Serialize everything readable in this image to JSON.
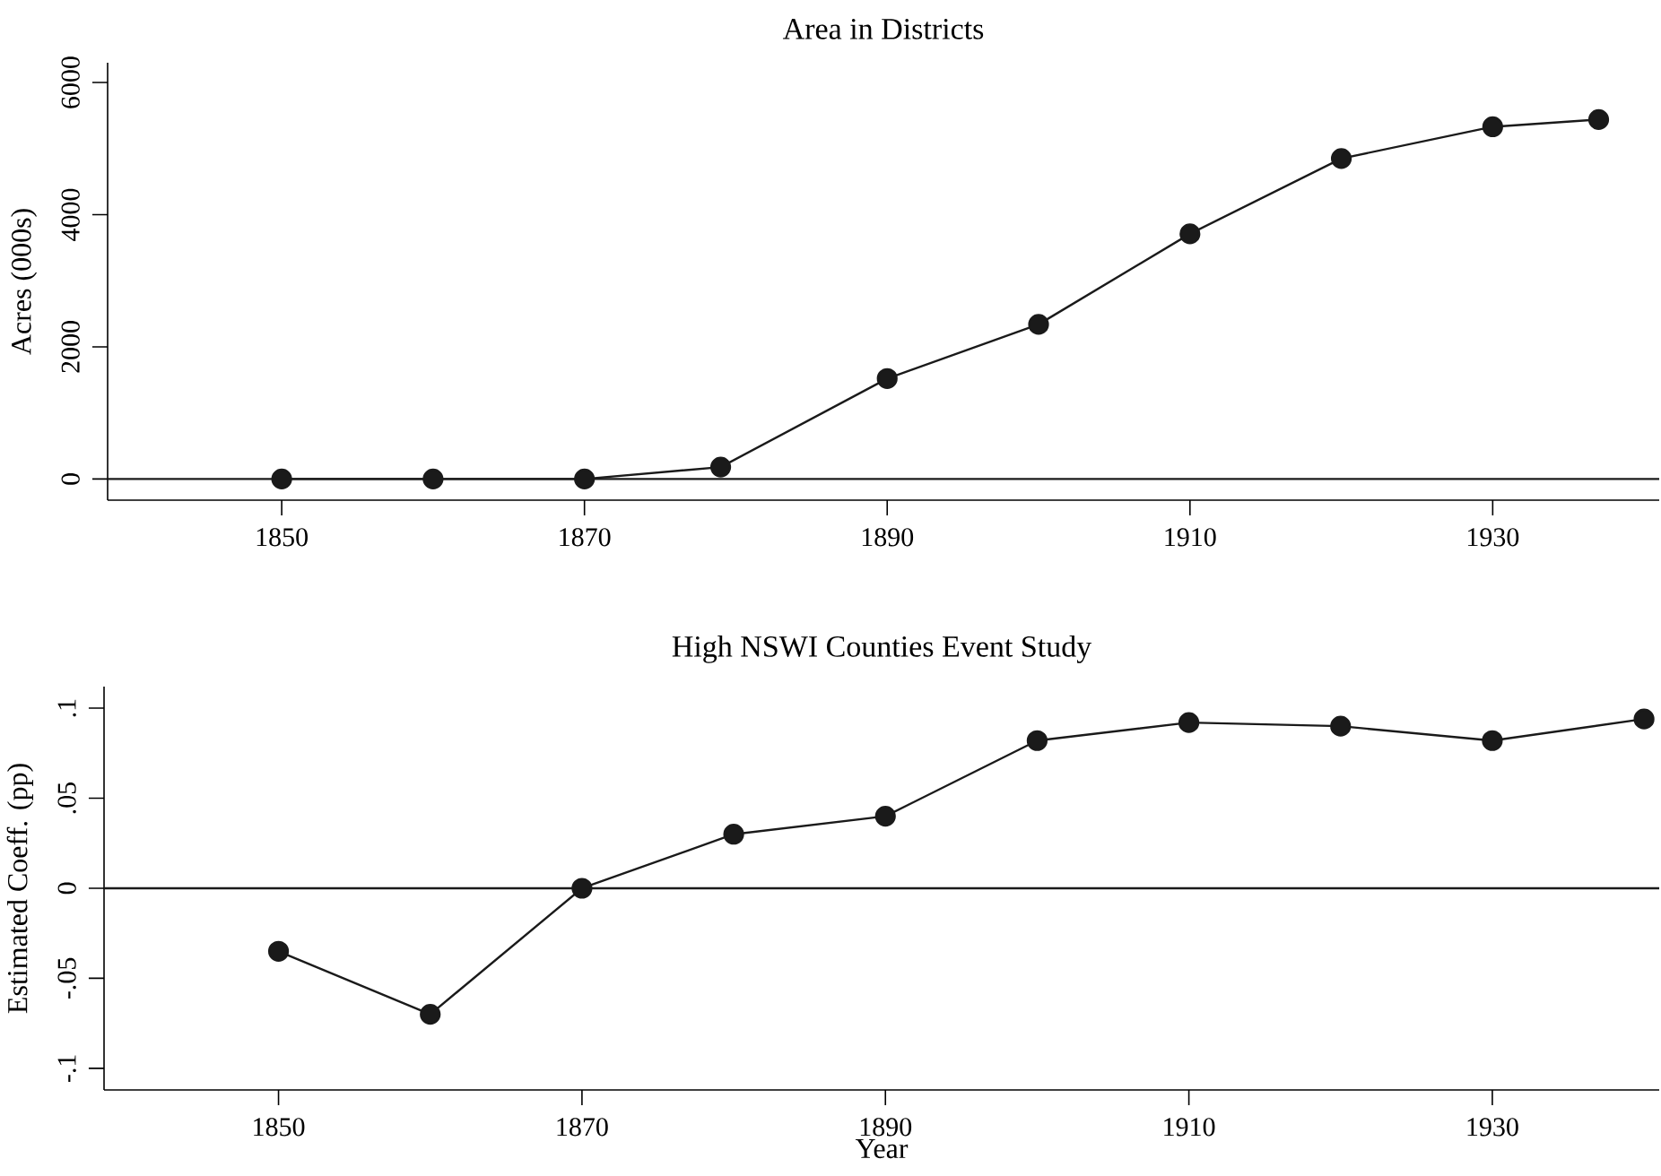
{
  "chart_data": [
    {
      "type": "line",
      "title": "Area in Districts",
      "ylabel": "Acres (000s)",
      "marker": "circle",
      "line_style": "solid",
      "x": [
        1850,
        1860,
        1870,
        1879,
        1890,
        1900,
        1910,
        1920,
        1930,
        1937
      ],
      "series": [
        {
          "color": "#1a1a1a",
          "values": [
            0,
            0,
            0,
            180,
            1520,
            2340,
            3710,
            4850,
            5330,
            5440
          ]
        }
      ],
      "xlim": [
        1838.5,
        1941
      ],
      "ylim": [
        -320,
        6300
      ],
      "xticks": [
        1850,
        1870,
        1890,
        1910,
        1930
      ],
      "yticks": [
        0,
        2000,
        4000,
        6000
      ],
      "ref_lines": [
        {
          "axis": "y",
          "value": 0,
          "color": "#1a1a1a"
        }
      ]
    },
    {
      "type": "line",
      "title": "High NSWI Counties Event Study",
      "xlabel": "Year",
      "ylabel": "Estimated Coeff. (pp)",
      "marker": "circle",
      "line_style": "solid",
      "x": [
        1850,
        1860,
        1870,
        1880,
        1890,
        1900,
        1910,
        1920,
        1930,
        1940
      ],
      "series": [
        {
          "color": "#1a1a1a",
          "values": [
            -0.035,
            -0.07,
            0,
            0.03,
            0.04,
            0.082,
            0.092,
            0.09,
            0.082,
            0.094
          ]
        }
      ],
      "xlim": [
        1838.5,
        1941
      ],
      "ylim": [
        -0.112,
        0.112
      ],
      "xticks": [
        1850,
        1870,
        1890,
        1910,
        1930
      ],
      "yticks": [
        {
          "value": -0.1,
          "label": "-.1"
        },
        {
          "value": -0.05,
          "label": "-.05"
        },
        {
          "value": 0,
          "label": "0"
        },
        {
          "value": 0.05,
          "label": ".05"
        },
        {
          "value": 0.1,
          "label": ".1"
        }
      ],
      "ref_lines": [
        {
          "axis": "y",
          "value": 0,
          "color": "#1a1a1a"
        }
      ]
    }
  ]
}
